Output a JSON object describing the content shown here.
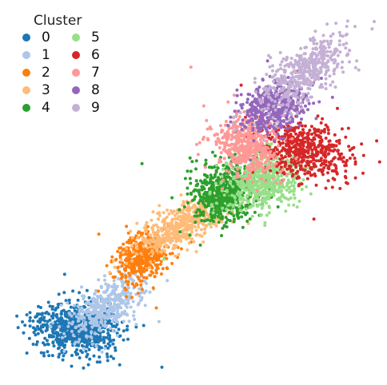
{
  "chart_data": {
    "type": "scatter",
    "legend": {
      "title": "Cluster",
      "placement": "top-left",
      "columns": 2
    },
    "grid": false,
    "axes_visible": false,
    "series": [
      {
        "name": "0",
        "color": "#1f77b4",
        "center": [
          -2.55,
          -2.45
        ],
        "spread": [
          0.42,
          0.26
        ],
        "angle_deg": -5,
        "n": 700,
        "seed": 11
      },
      {
        "name": "1",
        "color": "#aec7e8",
        "center": [
          -1.92,
          -1.98
        ],
        "spread": [
          0.42,
          0.22
        ],
        "angle_deg": 38,
        "n": 420,
        "seed": 12
      },
      {
        "name": "2",
        "color": "#ff7f0e",
        "center": [
          -1.2,
          -0.98
        ],
        "spread": [
          0.28,
          0.24
        ],
        "angle_deg": 40,
        "n": 380,
        "seed": 13
      },
      {
        "name": "3",
        "color": "#ffbb78",
        "center": [
          -0.38,
          -0.3
        ],
        "spread": [
          0.58,
          0.19
        ],
        "angle_deg": 28,
        "n": 520,
        "seed": 14
      },
      {
        "name": "4",
        "color": "#2ca02c",
        "center": [
          0.55,
          0.4
        ],
        "spread": [
          0.36,
          0.3
        ],
        "angle_deg": 28,
        "n": 620,
        "seed": 15
      },
      {
        "name": "5",
        "color": "#98df8a",
        "center": [
          1.38,
          0.65
        ],
        "spread": [
          0.4,
          0.3
        ],
        "angle_deg": 20,
        "n": 560,
        "seed": 16
      },
      {
        "name": "6",
        "color": "#d62728",
        "center": [
          2.2,
          1.3
        ],
        "spread": [
          0.48,
          0.3
        ],
        "angle_deg": -18,
        "n": 520,
        "seed": 17
      },
      {
        "name": "7",
        "color": "#ff9896",
        "center": [
          0.98,
          1.35
        ],
        "spread": [
          0.28,
          0.36
        ],
        "angle_deg": 58,
        "n": 480,
        "seed": 18
      },
      {
        "name": "8",
        "color": "#9467bd",
        "center": [
          1.58,
          2.2
        ],
        "spread": [
          0.34,
          0.24
        ],
        "angle_deg": 20,
        "n": 460,
        "seed": 19
      },
      {
        "name": "9",
        "color": "#c5b0d5",
        "center": [
          2.25,
          2.92
        ],
        "spread": [
          0.55,
          0.24
        ],
        "angle_deg": 42,
        "n": 480,
        "seed": 20
      }
    ],
    "xlim": [
      -3.8,
      3.6
    ],
    "ylim": [
      -3.3,
      4.1
    ]
  }
}
